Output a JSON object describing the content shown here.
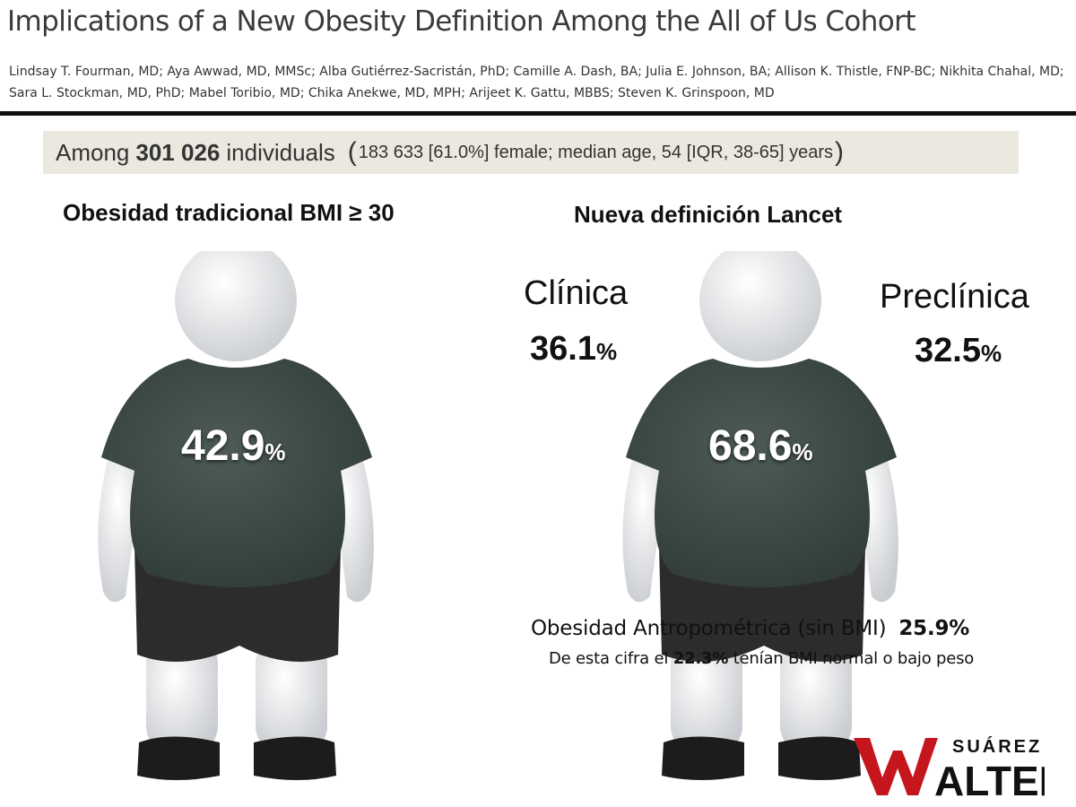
{
  "header": {
    "title": "Implications of a New Obesity Definition Among the All of Us Cohort",
    "authors_line1": "Lindsay T. Fourman, MD; Aya Awwad, MD, MMSc; Alba Gutiérrez-Sacristán, PhD; Camille A. Dash, BA; Julia E. Johnson, BA; Allison K. Thistle, FNP-BC; Nikhita Chahal, MD;",
    "authors_line2": "Sara L. Stockman, MD, PhD; Mabel Toribio, MD; Chika Anekwe, MD, MPH; Arijeet K. Gattu, MBBS; Steven K. Grinspoon, MD"
  },
  "cohort": {
    "prefix": "Among",
    "count": "301 026",
    "suffix": "individuals",
    "open_paren": "(",
    "detail": "183 633 [61.0%] female;  median age, 54 [IQR, 38-65] years",
    "close_paren": ")"
  },
  "traditional": {
    "heading": "Obesidad tradicional BMI ≥ 30",
    "value": "42.9",
    "unit": "%"
  },
  "lancet": {
    "heading": "Nueva definición Lancet",
    "total_value": "68.6",
    "total_unit": "%",
    "clinical_label": "Clínica",
    "clinical_value": "36.1",
    "clinical_unit": "%",
    "preclinical_label": "Preclínica",
    "preclinical_value": "32.5",
    "preclinical_unit": "%"
  },
  "anthropometric": {
    "label": "Obesidad Antropométrica (sin BMI)",
    "value": "25.9%",
    "note_prefix": "De esta cifra el",
    "note_value": "22.3%",
    "note_suffix": "tenían BMI normal o bajo peso"
  },
  "logo": {
    "top_text": "SUÁREZ",
    "main_text": "WALTER",
    "accent_color": "#c4161c"
  },
  "colors": {
    "shirt": "#3d4a44",
    "shorts": "#2c2c2c",
    "skin": "#e6e8ea",
    "cohort_band": "#ebe8df"
  }
}
